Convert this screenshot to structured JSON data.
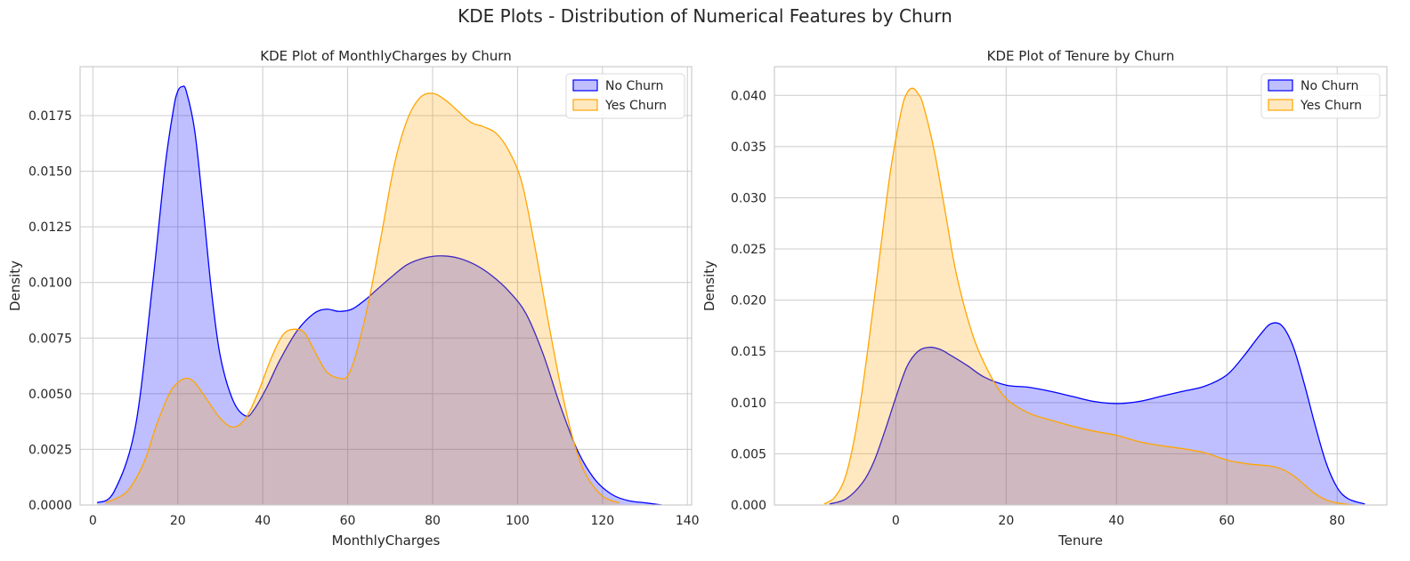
{
  "figure": {
    "suptitle": "KDE Plots - Distribution of Numerical Features by Churn"
  },
  "colors": {
    "no_churn": "#0000ff",
    "yes_churn": "#ffa500",
    "grid": "#cccccc",
    "frame": "#cccccc",
    "text": "#262626"
  },
  "chart_data": [
    {
      "type": "area",
      "title": "KDE Plot of MonthlyCharges by Churn",
      "xlabel": "MonthlyCharges",
      "ylabel": "Density",
      "xlim": [
        -3,
        141
      ],
      "ylim": [
        0,
        0.0197
      ],
      "xticks": [
        0,
        20,
        40,
        60,
        80,
        100,
        120,
        140
      ],
      "xtick_labels": [
        "0",
        "20",
        "40",
        "60",
        "80",
        "100",
        "120",
        "140"
      ],
      "yticks": [
        0,
        0.0025,
        0.005,
        0.0075,
        0.01,
        0.0125,
        0.015,
        0.0175
      ],
      "ytick_labels": [
        "0.0000",
        "0.0025",
        "0.0050",
        "0.0075",
        "0.0100",
        "0.0125",
        "0.0150",
        "0.0175"
      ],
      "grid": true,
      "legend_position": "top-right",
      "series": [
        {
          "name": "No Churn",
          "color": "#0000ff",
          "x": [
            1,
            5,
            10,
            14,
            17,
            19,
            20,
            21,
            22,
            24,
            26,
            28,
            30,
            33,
            36,
            38,
            41,
            44,
            48,
            52,
            55,
            58,
            61,
            64,
            67,
            70,
            74,
            78,
            82,
            86,
            90,
            94,
            98,
            102,
            106,
            110,
            114,
            118,
            122,
            126,
            130,
            134
          ],
          "values": [
            0.0001,
            0.0006,
            0.0035,
            0.0098,
            0.0152,
            0.0178,
            0.0186,
            0.0188,
            0.0186,
            0.0168,
            0.0133,
            0.0095,
            0.0067,
            0.0047,
            0.004,
            0.0043,
            0.0053,
            0.0065,
            0.0078,
            0.0086,
            0.0088,
            0.0087,
            0.0088,
            0.0092,
            0.0097,
            0.0102,
            0.0108,
            0.0111,
            0.0112,
            0.0111,
            0.0108,
            0.0103,
            0.0096,
            0.0086,
            0.0068,
            0.0045,
            0.0025,
            0.0012,
            0.0005,
            0.0002,
            0.0001,
            0.0
          ]
        },
        {
          "name": "Yes Churn",
          "color": "#ffa500",
          "x": [
            3,
            8,
            12,
            15,
            18,
            20,
            22,
            24,
            27,
            30,
            33,
            36,
            39,
            42,
            45,
            48,
            50,
            52,
            55,
            58,
            60,
            62,
            65,
            68,
            71,
            74,
            77,
            80,
            83,
            86,
            89,
            92,
            95,
            98,
            101,
            104,
            107,
            110,
            113,
            116,
            120,
            124
          ],
          "values": [
            0.0001,
            0.0006,
            0.0019,
            0.0036,
            0.005,
            0.0055,
            0.0057,
            0.0055,
            0.0047,
            0.0039,
            0.0035,
            0.0039,
            0.0051,
            0.0066,
            0.0077,
            0.0079,
            0.0077,
            0.007,
            0.006,
            0.0057,
            0.0058,
            0.0068,
            0.0092,
            0.0122,
            0.0153,
            0.0173,
            0.0183,
            0.0185,
            0.0182,
            0.0177,
            0.0172,
            0.017,
            0.0167,
            0.0159,
            0.0145,
            0.0117,
            0.0085,
            0.0055,
            0.003,
            0.0014,
            0.0004,
            0.0001
          ]
        }
      ]
    },
    {
      "type": "area",
      "title": "KDE Plot of Tenure by Churn",
      "xlabel": "Tenure",
      "ylabel": "Density",
      "xlim": [
        -22,
        89
      ],
      "ylim": [
        0,
        0.0428
      ],
      "xticks": [
        0,
        20,
        40,
        60,
        80
      ],
      "xtick_labels": [
        "0",
        "20",
        "40",
        "60",
        "80"
      ],
      "yticks": [
        0,
        0.005,
        0.01,
        0.015,
        0.02,
        0.025,
        0.03,
        0.035,
        0.04
      ],
      "ytick_labels": [
        "0.000",
        "0.005",
        "0.010",
        "0.015",
        "0.020",
        "0.025",
        "0.030",
        "0.035",
        "0.040"
      ],
      "grid": true,
      "legend_position": "top-right",
      "series": [
        {
          "name": "No Churn",
          "color": "#0000ff",
          "x": [
            -12,
            -9,
            -6,
            -4,
            -2,
            0,
            2,
            4,
            6,
            8,
            10,
            13,
            16,
            20,
            24,
            28,
            32,
            36,
            40,
            44,
            48,
            52,
            56,
            60,
            63,
            66,
            68,
            70,
            72,
            74,
            76,
            78,
            80,
            82,
            85
          ],
          "values": [
            0.0001,
            0.0006,
            0.0022,
            0.0042,
            0.0072,
            0.0105,
            0.0135,
            0.015,
            0.0154,
            0.0152,
            0.0146,
            0.0136,
            0.0125,
            0.0117,
            0.0115,
            0.0111,
            0.0106,
            0.0101,
            0.0099,
            0.0101,
            0.0106,
            0.0111,
            0.0116,
            0.0127,
            0.0145,
            0.0166,
            0.0177,
            0.0175,
            0.0155,
            0.0119,
            0.0078,
            0.0041,
            0.0017,
            0.0006,
            0.0001
          ]
        },
        {
          "name": "Yes Churn",
          "color": "#ffa500",
          "x": [
            -13,
            -11,
            -9,
            -7,
            -5,
            -3,
            -1,
            1,
            2,
            3,
            4,
            5,
            7,
            9,
            11,
            14,
            17,
            20,
            24,
            28,
            32,
            36,
            40,
            44,
            48,
            52,
            56,
            60,
            64,
            68,
            70,
            72,
            74,
            76,
            78,
            80,
            83
          ],
          "values": [
            0.0001,
            0.0008,
            0.003,
            0.008,
            0.0155,
            0.024,
            0.0325,
            0.0385,
            0.0402,
            0.0407,
            0.0402,
            0.039,
            0.0345,
            0.0285,
            0.0225,
            0.0165,
            0.0128,
            0.0104,
            0.009,
            0.0083,
            0.0077,
            0.0072,
            0.0068,
            0.0062,
            0.0058,
            0.0055,
            0.0051,
            0.0044,
            0.004,
            0.0038,
            0.0035,
            0.0029,
            0.002,
            0.0011,
            0.0005,
            0.0002,
            0.0
          ]
        }
      ]
    }
  ]
}
